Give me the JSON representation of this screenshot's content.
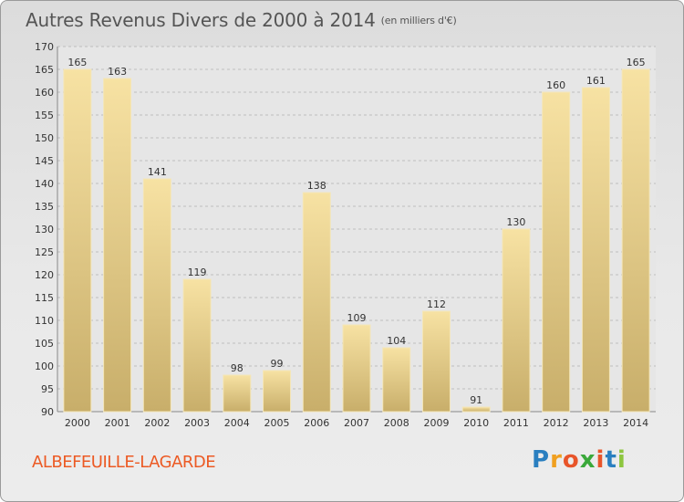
{
  "title": "Autres Revenus Divers de 2000 à 2014",
  "subtitle": "(en milliers d'€)",
  "town": "ALBEFEUILLE-LAGARDE",
  "logo": {
    "letters": [
      "P",
      "r",
      "o",
      "x",
      "i",
      "t",
      "i"
    ],
    "colors": [
      "#2a7fc0",
      "#f0a020",
      "#e8552a",
      "#3aa83a",
      "#e8552a",
      "#2a7fc0",
      "#8dc63f"
    ]
  },
  "colors": {
    "bar_light": "#f7e2a3",
    "bar_dark": "#c8ae6a",
    "grid": "#bdbdbd",
    "text": "#333333"
  },
  "chart_data": {
    "type": "bar",
    "categories": [
      "2000",
      "2001",
      "2002",
      "2003",
      "2004",
      "2005",
      "2006",
      "2007",
      "2008",
      "2009",
      "2010",
      "2011",
      "2012",
      "2013",
      "2014"
    ],
    "values": [
      165,
      163,
      141,
      119,
      98,
      99,
      138,
      109,
      104,
      112,
      91,
      130,
      160,
      161,
      165
    ],
    "title": "Autres Revenus Divers de 2000 à 2014",
    "xlabel": "",
    "ylabel": "",
    "ylim": [
      90,
      170
    ],
    "yticks": [
      90,
      95,
      100,
      105,
      110,
      115,
      120,
      125,
      130,
      135,
      140,
      145,
      150,
      155,
      160,
      165,
      170
    ],
    "grid": true,
    "data_labels": true
  }
}
